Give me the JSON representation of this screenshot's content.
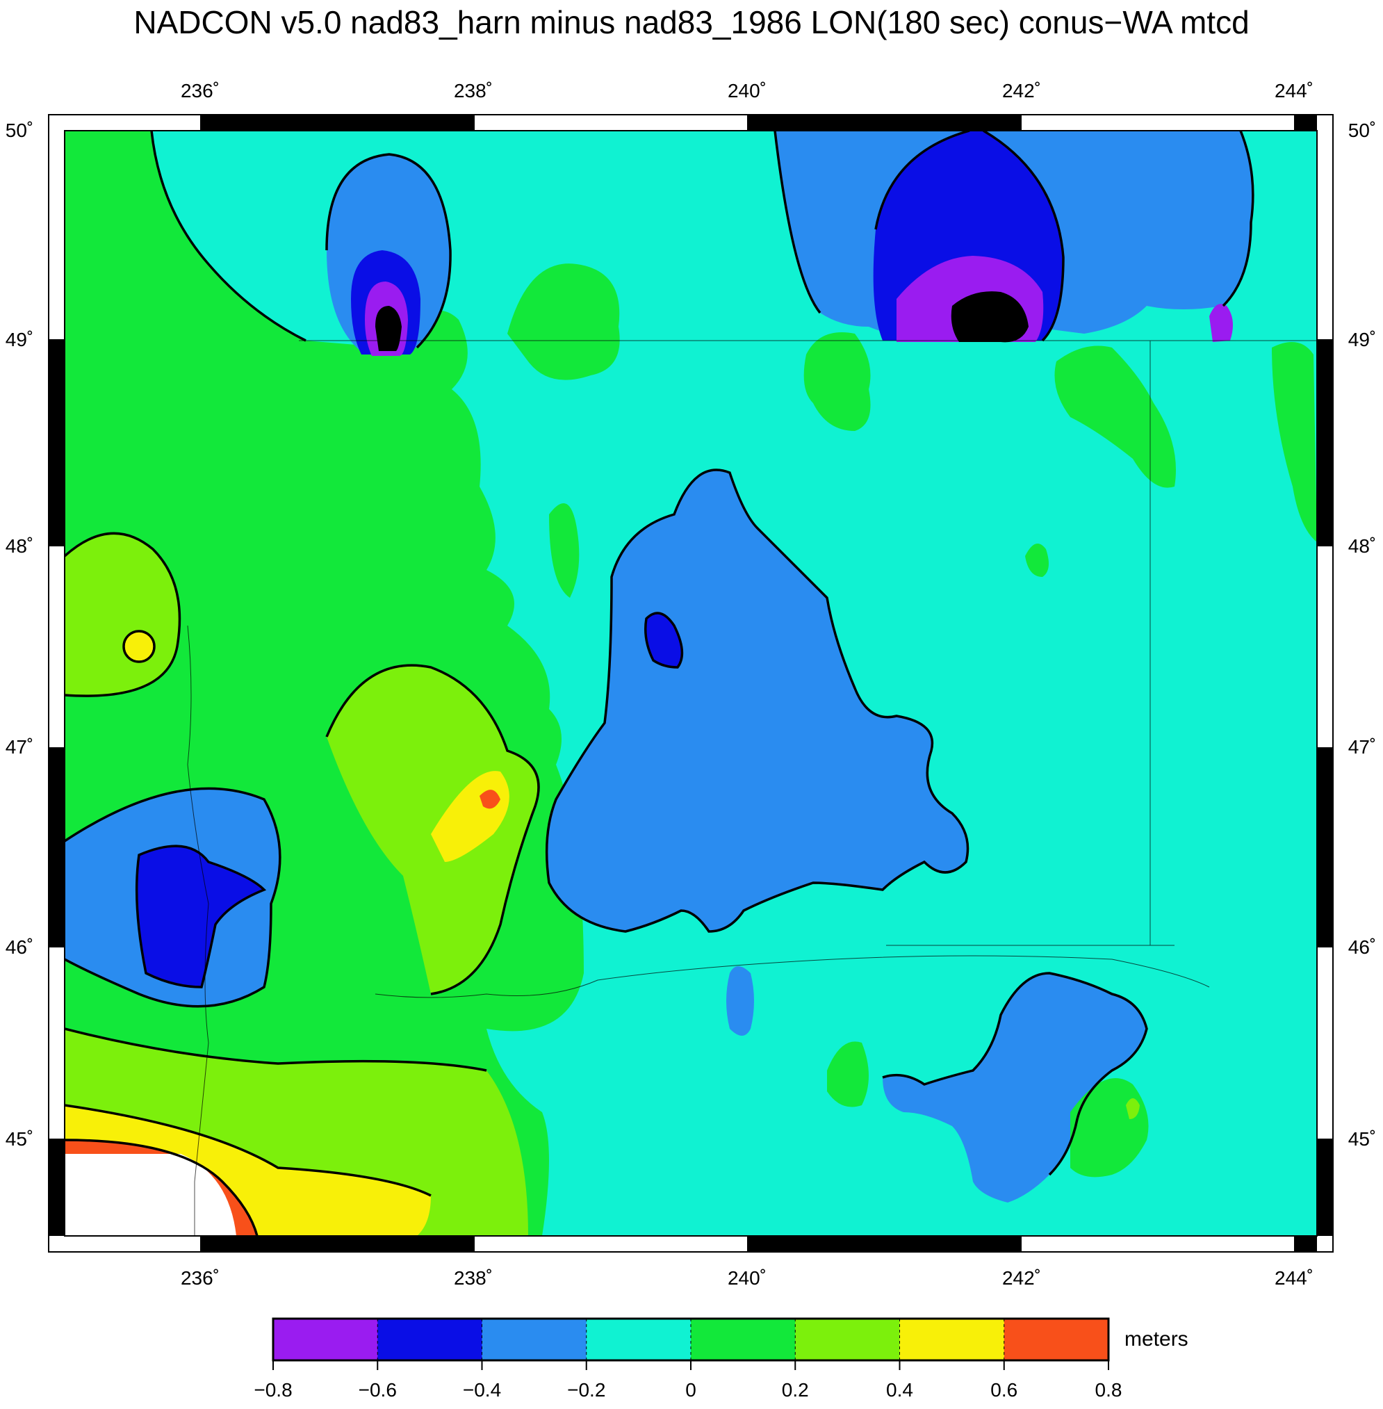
{
  "title": "NADCON v5.0 nad83_harn minus nad83_1986 LON(180 sec) conus−WA mtcd",
  "lon_ticks": [
    "236˚",
    "238˚",
    "240˚",
    "242˚",
    "244˚"
  ],
  "lat_ticks": [
    "50˚",
    "49˚",
    "48˚",
    "47˚",
    "46˚",
    "45˚"
  ],
  "map_extent": {
    "lon_min": 235,
    "lon_max": 244.17,
    "lat_min": 44.5,
    "lat_max": 50
  },
  "colorbar": {
    "unit": "meters",
    "labels": [
      "−0.8",
      "−0.6",
      "−0.4",
      "−0.2",
      "0",
      "0.2",
      "0.4",
      "0.6",
      "0.8"
    ],
    "colors": [
      "#9a1cf0",
      "#0a0ee6",
      "#2a8cf0",
      "#10f2d2",
      "#12e83a",
      "#7cf00c",
      "#f8f008",
      "#f8501a"
    ]
  },
  "palette": {
    "background": "#10f2d2",
    "light_blue": "#2a8cf0",
    "dark_blue": "#0a0ee6",
    "purple": "#9a1cf0",
    "green": "#12e83a",
    "yellow_green": "#7cf00c",
    "yellow": "#f8f008",
    "orange": "#f8501a",
    "black": "#000000"
  }
}
